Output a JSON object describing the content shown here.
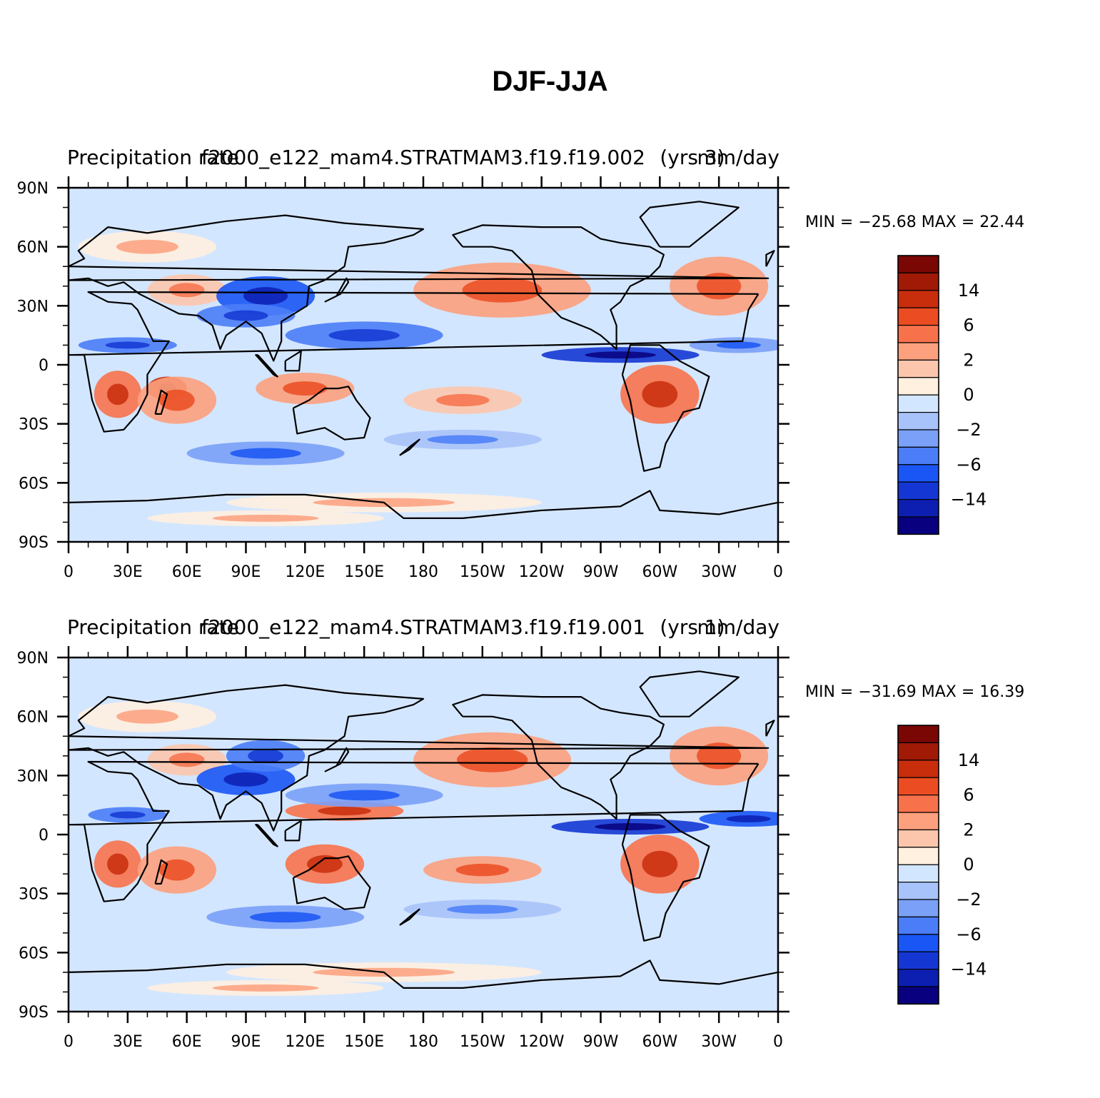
{
  "title": "DJF-JJA",
  "colors": {
    "palette": [
      "#08007e",
      "#0c1fb1",
      "#1437d4",
      "#1a55f5",
      "#4a7df7",
      "#7aa0f7",
      "#a8c2fa",
      "#d3e6ff",
      "#fff0e0",
      "#fcc6ad",
      "#fca07d",
      "#f7724b",
      "#eb4c22",
      "#c82d0c",
      "#a01a06",
      "#7a0704"
    ],
    "coastline": "#000000",
    "ocean_base": "#d3e6ff"
  },
  "panels": [
    {
      "left_title": "Precipitation rate",
      "center_title": "f2000_e122_mam4.STRATMAM3.f19.f19.002",
      "center_subtitle": "(yrs 3)",
      "right_title": "mm/day",
      "min_max": "MIN = −25.68  MAX =   22.44",
      "colorbar_labels": [
        "14",
        "6",
        "2",
        "0",
        "−2",
        "−6",
        "−14"
      ]
    },
    {
      "left_title": "Precipitation rate",
      "center_title": "f2000_e122_mam4.STRATMAM3.f19.f19.001",
      "center_subtitle": "(yrs 1)",
      "right_title": "mm/day",
      "min_max": "MIN = −31.69  MAX =   16.39",
      "colorbar_labels": [
        "14",
        "6",
        "2",
        "0",
        "−2",
        "−6",
        "−14"
      ]
    }
  ],
  "axes": {
    "lat_ticks": [
      "90N",
      "60N",
      "30N",
      "0",
      "30S",
      "60S",
      "90S"
    ],
    "lon_ticks": [
      "0",
      "30E",
      "60E",
      "90E",
      "120E",
      "150E",
      "180",
      "150W",
      "120W",
      "90W",
      "60W",
      "30W",
      "0"
    ]
  }
}
